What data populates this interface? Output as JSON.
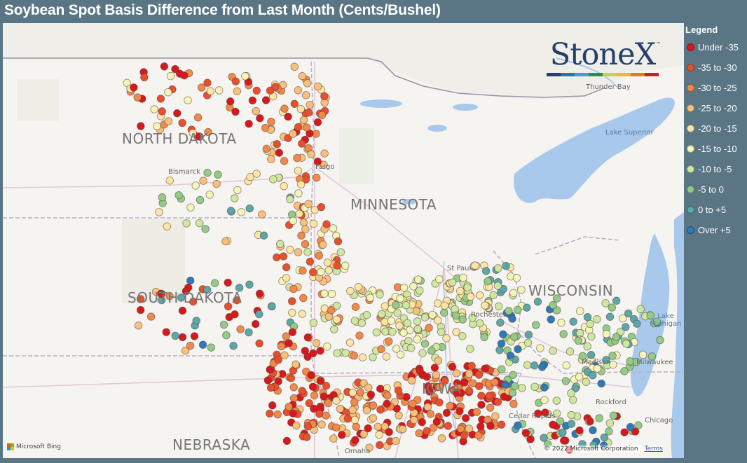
{
  "title": "Soybean Spot Basis Difference from Last Month (Cents/Bushel)",
  "legend": {
    "title": "Legend",
    "items": [
      {
        "label": "Under -35",
        "color": "#d7191c"
      },
      {
        "label": "-35 to -30",
        "color": "#e8502d"
      },
      {
        "label": "-30 to -25",
        "color": "#f08a4b"
      },
      {
        "label": "-25 to -20",
        "color": "#f8c07a"
      },
      {
        "label": "-20 to -15",
        "color": "#fde6a3"
      },
      {
        "label": "-15 to -10",
        "color": "#f4f6b8"
      },
      {
        "label": "-10 to -5",
        "color": "#cfe8a0"
      },
      {
        "label": "-5 to 0",
        "color": "#93cc87"
      },
      {
        "label": "0 to +5",
        "color": "#5aa8a8"
      },
      {
        "label": "Over +5",
        "color": "#2b7bba"
      }
    ]
  },
  "map": {
    "states": [
      "NORTH DAKOTA",
      "MINNESOTA",
      "SOUTH DAKOTA",
      "WISCONSIN",
      "NEBRASKA",
      "IOWA"
    ],
    "cities": [
      "Bismarck",
      "Fargo",
      "St Paul",
      "Rochester",
      "Madison",
      "Milwaukee",
      "Rockford",
      "Chicago",
      "Thunder Bay",
      "Cedar Rapids",
      "Omaha"
    ],
    "water": [
      "Lake Superior",
      "Lake Michigan"
    ]
  },
  "logo": {
    "text": "StoneX",
    "tm": "™",
    "bar_colors": [
      "#24406b",
      "#2f6fb0",
      "#3aa5c8",
      "#2e8b57",
      "#c8d24a",
      "#f2b632",
      "#e07b24",
      "#c8202f"
    ]
  },
  "attribution": {
    "bing": "Microsoft Bing",
    "copyright": "© 2022 Microsoft Corporation",
    "terms": "Terms"
  }
}
